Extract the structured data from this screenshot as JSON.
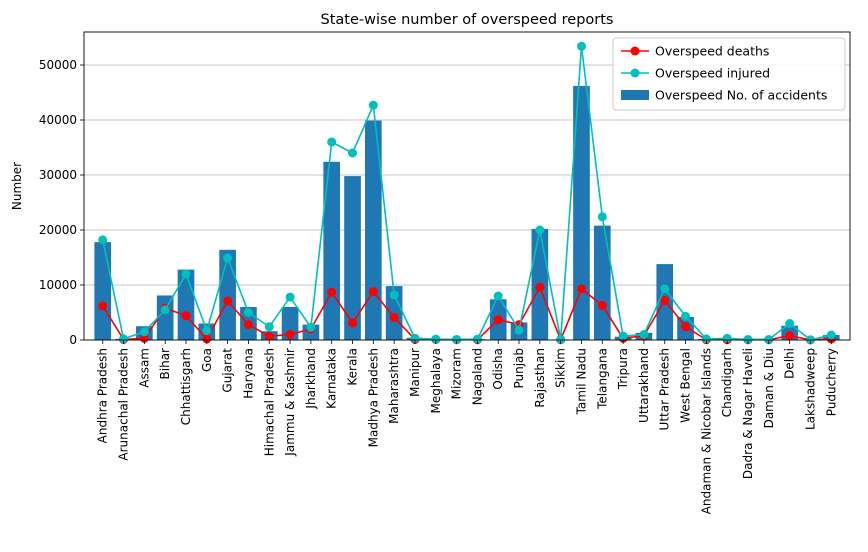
{
  "chart_data": {
    "type": "bar",
    "title": "State-wise number of overspeed reports",
    "xlabel": "",
    "ylabel": "Number",
    "ylim": [
      0,
      56000
    ],
    "yticks": [
      0,
      10000,
      20000,
      30000,
      40000,
      50000
    ],
    "grid": "y",
    "legend_position": "top-right",
    "categories": [
      "Andhra Pradesh",
      "Arunachal Pradesh",
      "Assam",
      "Bihar",
      "Chhattisgarh",
      "Goa",
      "Gujarat",
      "Haryana",
      "Himachal Pradesh",
      "Jammu & Kashmir",
      "Jharkhand",
      "Karnataka",
      "Kerala",
      "Madhya Pradesh",
      "Maharashtra",
      "Manipur",
      "Meghalaya",
      "Mizoram",
      "Nagaland",
      "Odisha",
      "Punjab",
      "Rajasthan",
      "Sikkim",
      "Tamil Nadu",
      "Telangana",
      "Tripura",
      "Uttarakhand",
      "Uttar Pradesh",
      "West Bengal",
      "Andaman & Nicobar Islands",
      "Chandigarh",
      "Dadra & Nagar Haveli",
      "Daman & Diu",
      "Delhi",
      "Lakshadweep",
      "Puducherry"
    ],
    "series": [
      {
        "name": "Overspeed deaths",
        "type": "line",
        "color": "#ff0000",
        "values": [
          6200,
          100,
          300,
          5800,
          4400,
          200,
          7100,
          2800,
          700,
          1000,
          2000,
          8700,
          3100,
          8800,
          4100,
          100,
          100,
          50,
          50,
          3700,
          2800,
          9600,
          50,
          9300,
          6300,
          300,
          800,
          7200,
          2400,
          50,
          50,
          50,
          50,
          800,
          20,
          200
        ]
      },
      {
        "name": "Overspeed injured",
        "type": "line",
        "color": "#00bfbf",
        "values": [
          18200,
          200,
          1500,
          5500,
          12000,
          1700,
          14900,
          5000,
          2400,
          7800,
          2300,
          36000,
          34000,
          42700,
          8200,
          300,
          150,
          100,
          150,
          8000,
          1800,
          20000,
          100,
          53400,
          22400,
          700,
          1000,
          9300,
          4300,
          200,
          300,
          100,
          100,
          3000,
          20,
          900
        ]
      },
      {
        "name": "Overspeed No. of accidents",
        "type": "bar",
        "color": "#1f77b4",
        "values": [
          17800,
          200,
          2500,
          8100,
          12800,
          3000,
          16400,
          6000,
          1600,
          6000,
          2800,
          32400,
          29800,
          39900,
          9800,
          400,
          150,
          100,
          150,
          7400,
          3200,
          20200,
          100,
          46200,
          20800,
          600,
          1300,
          13800,
          4200,
          200,
          300,
          100,
          100,
          2600,
          20,
          900
        ]
      }
    ]
  }
}
